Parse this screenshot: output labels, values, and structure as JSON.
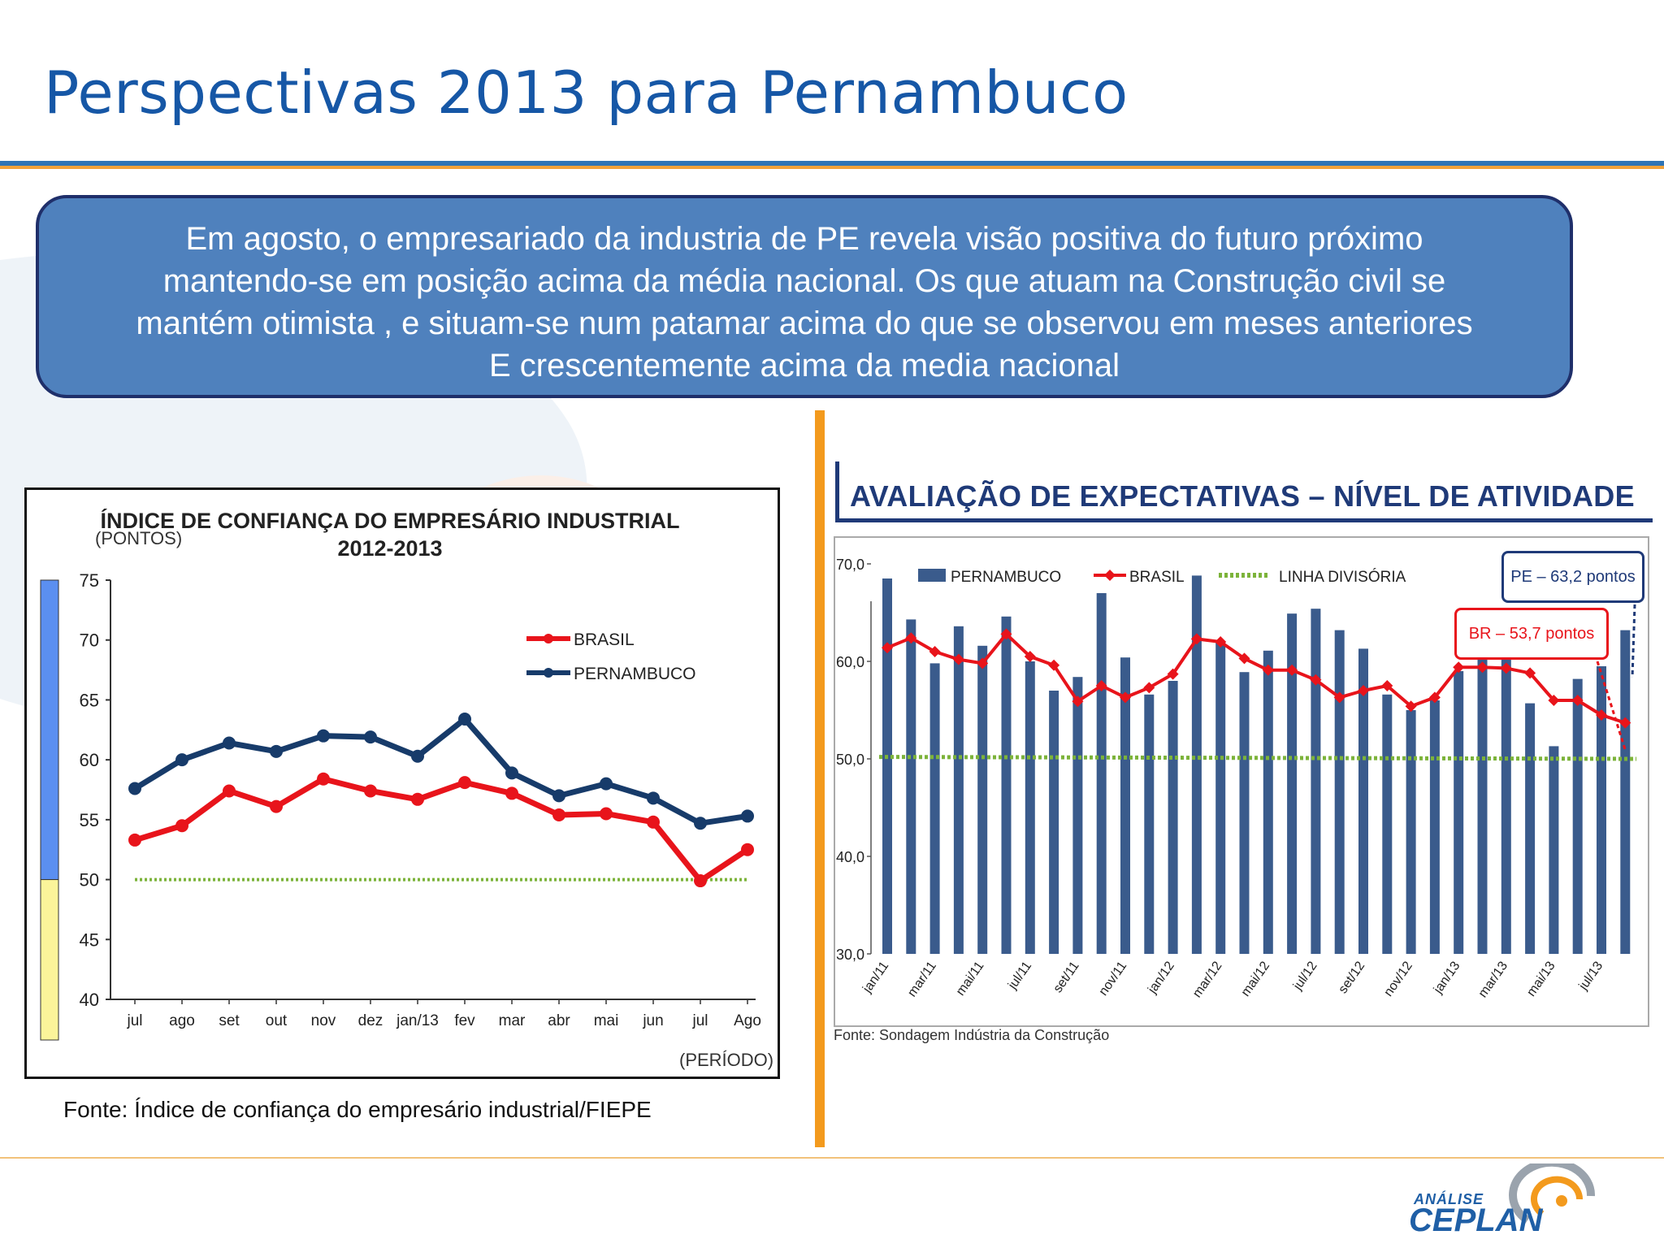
{
  "title": "Perspectivas 2013 para Pernambuco",
  "callout": {
    "lines": [
      "Em agosto, o empresariado da industria de PE revela visão positiva do futuro próximo",
      "mantendo-se em posição acima da média nacional. Os que atuam na Construção civil se",
      "mantém otimista , e situam-se  num patamar acima do que se observou em meses anteriores",
      "E crescentemente acima da media nacional"
    ]
  },
  "left_fonte": "Fonte: Índice de confiança do empresário industrial/FIEPE",
  "right_fonte": "Fonte: Sondagem Indústria da Construção",
  "right_title": "AVALIAÇÃO DE EXPECTATIVAS – NÍVEL DE ATIVIDADE",
  "logo": {
    "small": "ANÁLISE",
    "big": "CEPLAN"
  },
  "colors": {
    "title": "#1657a6",
    "callout": "#4f81bd",
    "brasil": "#e8141b",
    "pernambuco": "#173b6a",
    "divisoria": "#7cb33a",
    "bars": "#3a5b8c",
    "accent": "#f39a1d"
  },
  "chart_data": [
    {
      "type": "line",
      "title": "ÍNDICE DE CONFIANÇA DO EMPRESÁRIO INDUSTRIAL",
      "subtitle": "2012-2013",
      "ylabel": "(PONTOS)",
      "xlabel": "(PERÍODO)",
      "ylim": [
        40,
        75
      ],
      "yticks": [
        40,
        45,
        50,
        55,
        60,
        65,
        70,
        75
      ],
      "categories": [
        "jul",
        "ago",
        "set",
        "out",
        "nov",
        "dez",
        "jan/13",
        "fev",
        "mar",
        "abr",
        "mai",
        "jun",
        "jul",
        "Ago"
      ],
      "series": [
        {
          "name": "BRASIL",
          "color": "#e8141b",
          "values": [
            53.3,
            54.5,
            57.4,
            56.1,
            58.4,
            57.4,
            56.7,
            58.1,
            57.2,
            55.4,
            55.5,
            54.8,
            49.9,
            52.5
          ]
        },
        {
          "name": "PERNAMBUCO",
          "color": "#173b6a",
          "values": [
            57.6,
            60.0,
            61.4,
            60.7,
            62.0,
            61.9,
            60.3,
            63.4,
            58.9,
            57.0,
            58.0,
            56.8,
            54.7,
            55.3
          ]
        }
      ],
      "reference_line": {
        "value": 50
      },
      "legend": "right"
    },
    {
      "type": "bar",
      "ylim": [
        30,
        70
      ],
      "yticks": [
        "30,0",
        "40,0",
        "50,0",
        "60,0",
        "70,0"
      ],
      "ytick_values": [
        30,
        40,
        50,
        60,
        70
      ],
      "tick_labels": [
        "jan/11",
        "mar/11",
        "mai/11",
        "jul/11",
        "set/11",
        "nov/11",
        "jan/12",
        "mar/12",
        "mai/12",
        "jul/12",
        "set/12",
        "nov/12",
        "jan/13",
        "mar/13",
        "mai/13",
        "jul/13"
      ],
      "series": [
        {
          "name": "PERNAMBUCO",
          "kind": "bar",
          "color": "#3a5b8c",
          "values": [
            68.5,
            64.3,
            59.8,
            63.6,
            61.6,
            64.6,
            60.0,
            57.0,
            58.4,
            67.0,
            60.4,
            56.6,
            58.0,
            68.8,
            62.0,
            58.9,
            61.1,
            64.9,
            65.4,
            63.2,
            61.3,
            56.6,
            55.0,
            56.0,
            59.0,
            60.6,
            60.4,
            55.7,
            51.3,
            58.2,
            59.5,
            63.2
          ]
        },
        {
          "name": "BRASIL",
          "kind": "line",
          "color": "#e8141b",
          "values": [
            61.4,
            62.4,
            61.0,
            60.2,
            59.8,
            62.8,
            60.5,
            59.6,
            55.9,
            57.5,
            56.3,
            57.3,
            58.7,
            62.3,
            62.0,
            60.3,
            59.1,
            59.1,
            58.1,
            56.3,
            57.0,
            57.5,
            55.4,
            56.3,
            59.4,
            59.4,
            59.3,
            58.8,
            56.0,
            56.0,
            54.5,
            53.7
          ]
        },
        {
          "name": "LINHA DIVISÓRIA",
          "kind": "dotted",
          "color": "#7cb33a",
          "values": [
            50.2,
            50.0
          ]
        }
      ],
      "annotations": [
        "PE – 63,2 pontos",
        "BR – 53,7 pontos"
      ],
      "legend": "top"
    }
  ]
}
